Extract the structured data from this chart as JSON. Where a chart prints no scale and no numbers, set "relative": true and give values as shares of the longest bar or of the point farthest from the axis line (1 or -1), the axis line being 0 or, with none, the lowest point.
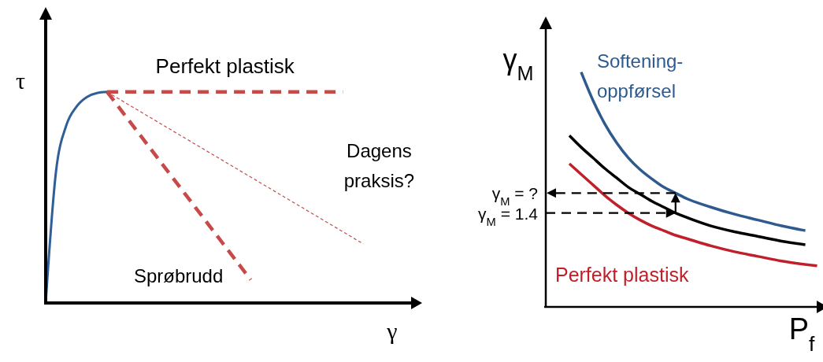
{
  "chart_data": [
    {
      "type": "line",
      "relative": true,
      "xlabel": "γ",
      "ylabel": "τ",
      "categories": [
        null,
        null,
        null,
        null,
        null,
        null,
        null,
        null,
        null,
        null,
        null,
        null,
        null,
        null,
        null,
        null,
        null,
        null,
        null,
        null,
        null,
        null,
        null,
        null,
        null,
        null,
        null,
        null,
        null,
        null,
        null,
        null,
        null,
        null,
        null,
        null,
        null
      ],
      "series": [
        {
          "color": "#2e5f96",
          "line_style": "solid",
          "values": [
            0,
            0.62,
            0.84,
            0.93,
            0.975,
            0.995,
            1,
            null,
            null,
            null,
            null,
            null,
            null,
            null,
            null,
            null,
            null,
            null,
            null,
            null,
            null,
            null,
            null,
            null,
            null,
            null,
            null,
            null,
            null,
            null,
            null,
            null,
            null,
            null,
            null,
            null,
            null
          ]
        },
        {
          "name": "Perfekt plastisk",
          "color": "#c84a48",
          "line_style": "dashed",
          "values": [
            null,
            null,
            null,
            null,
            null,
            null,
            1,
            null,
            null,
            null,
            null,
            null,
            null,
            null,
            null,
            null,
            null,
            null,
            null,
            null,
            null,
            null,
            null,
            null,
            null,
            null,
            null,
            null,
            null,
            1,
            null,
            null,
            null,
            null,
            null,
            null,
            null
          ]
        },
        {
          "name": "Sprøbrudd",
          "color": "#c84a48",
          "line_style": "dashed",
          "values": [
            null,
            null,
            null,
            null,
            null,
            null,
            1,
            null,
            null,
            null,
            null,
            null,
            null,
            null,
            null,
            null,
            null,
            null,
            null,
            null,
            0.11,
            null,
            null,
            null,
            null,
            null,
            null,
            null,
            null,
            null,
            null,
            null,
            null,
            null,
            null,
            null,
            null
          ]
        },
        {
          "name": "Dagens praksis?",
          "color": "#c84a48",
          "line_style": "dotted",
          "values": [
            null,
            null,
            null,
            null,
            null,
            null,
            1,
            null,
            null,
            null,
            null,
            null,
            null,
            null,
            null,
            null,
            null,
            null,
            null,
            null,
            null,
            null,
            null,
            null,
            null,
            null,
            null,
            null,
            null,
            null,
            null,
            0.28,
            null,
            null,
            null,
            null,
            null
          ]
        }
      ]
    },
    {
      "type": "line",
      "relative": true,
      "xlabel": "P$_{f}$",
      "ylabel": "γ$_{M}$",
      "annotations": [
        "γ$_{M}$ = ?",
        "γ$_{M}$ = 1.4"
      ],
      "categories": [
        null,
        null,
        null,
        null,
        null,
        null,
        null,
        null,
        null,
        null,
        null,
        null,
        null,
        null,
        null,
        null,
        null,
        null,
        null,
        null,
        null,
        null,
        null,
        null
      ],
      "series": [
        {
          "name": "Softening-oppførsel",
          "color": "#2e5a8f",
          "line_style": "solid",
          "values": [
            null,
            null,
            null,
            1,
            0.88,
            0.78,
            0.7,
            0.635,
            0.585,
            0.545,
            0.51,
            0.485,
            0.46,
            null,
            0.425,
            null,
            0.395,
            null,
            0.37,
            null,
            0.345,
            null,
            0.325,
            null
          ]
        },
        {
          "color": "#000000",
          "line_style": "solid",
          "values": [
            null,
            null,
            0.73,
            0.68,
            0.635,
            0.59,
            0.55,
            0.51,
            0.48,
            0.45,
            0.425,
            0.4,
            0.38,
            null,
            0.345,
            null,
            0.32,
            null,
            0.3,
            null,
            0.28,
            null,
            0.265,
            null
          ]
        },
        {
          "name": "Perfekt plastisk",
          "color": "#c0202a",
          "line_style": "solid",
          "values": [
            null,
            null,
            0.61,
            0.565,
            0.52,
            0.475,
            0.435,
            0.4,
            0.37,
            0.345,
            0.325,
            0.305,
            0.29,
            null,
            0.26,
            null,
            0.235,
            null,
            0.215,
            null,
            0.195,
            null,
            null,
            0.175
          ]
        }
      ]
    }
  ]
}
